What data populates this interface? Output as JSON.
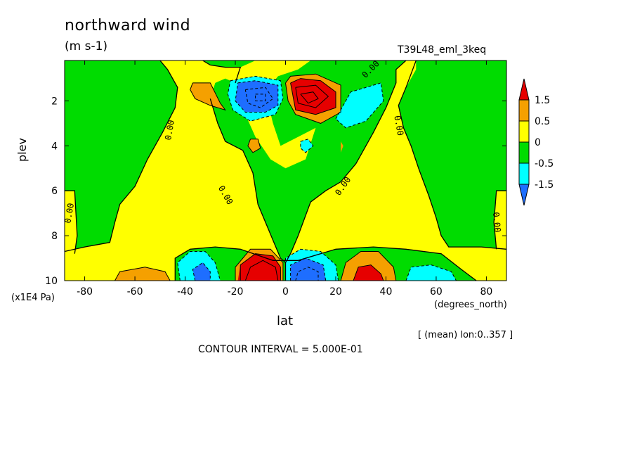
{
  "title": "northward wind",
  "units": "(m s-1)",
  "run_name": "T39L48_eml_3keq",
  "subset_note": "[ (mean) lon:0..357 ]",
  "contour_interval": "CONTOUR INTERVAL = 5.000E-01",
  "chart_data": {
    "type": "heatmap",
    "variable": "northward wind",
    "xlabel": "lat",
    "x_units": "(degrees_north)",
    "ylabel": "plev",
    "y_units": "(x1E4 Pa)",
    "xlim": [
      -88,
      88
    ],
    "ylim": [
      10,
      0.2
    ],
    "y_inverted": true,
    "x_ticks": [
      -80,
      -60,
      -40,
      -20,
      0,
      20,
      40,
      60,
      80
    ],
    "x_tick_labels": [
      "-80",
      "-60",
      "-40",
      "-20",
      "0",
      "20",
      "40",
      "60",
      "80"
    ],
    "y_ticks": [
      2,
      4,
      6,
      8,
      10
    ],
    "y_tick_labels": [
      "2",
      "4",
      "6",
      "8",
      "10"
    ],
    "contour_interval": 0.5,
    "contour_line_label": "0.00",
    "levels": [
      -1.5,
      -0.5,
      0,
      0.5,
      1.5
    ],
    "colorbar": {
      "labels": [
        "1.5",
        "0.5",
        "0",
        "-0.5",
        "-1.5"
      ],
      "bands": [
        {
          "range": "> 1.5",
          "color": "#e60000"
        },
        {
          "range": "0.5 to 1.5",
          "color": "#f5a000"
        },
        {
          "range": "0 to 0.5",
          "color": "#ffff00"
        },
        {
          "range": "-0.5 to 0",
          "color": "#00dc00"
        },
        {
          "range": "-1.5 to -0.5",
          "color": "#00ffff"
        },
        {
          "range": "< -1.5",
          "color": "#1e6eff"
        }
      ]
    },
    "features": [
      {
        "name": "upper negative cell",
        "lat": -10,
        "plev": 2,
        "value": -2.2
      },
      {
        "name": "upper positive cell",
        "lat": 10,
        "plev": 2,
        "value": 2.3
      },
      {
        "name": "lower positive cell",
        "lat": -8,
        "plev": 9.7,
        "value": 2.4
      },
      {
        "name": "lower negative cell",
        "lat": 8,
        "plev": 9.7,
        "value": -2.4
      },
      {
        "name": "lower positive cell (NH)",
        "lat": 33,
        "plev": 9.7,
        "value": 2.0
      },
      {
        "name": "lower negative cell (SH)",
        "lat": -33,
        "plev": 9.7,
        "value": -1.8
      },
      {
        "name": "weak positive (SH subpolar)",
        "lat": -56,
        "plev": 9.9,
        "value": 0.8
      },
      {
        "name": "weak negative (NH subpolar)",
        "lat": 56,
        "plev": 9.9,
        "value": -0.8
      }
    ]
  }
}
